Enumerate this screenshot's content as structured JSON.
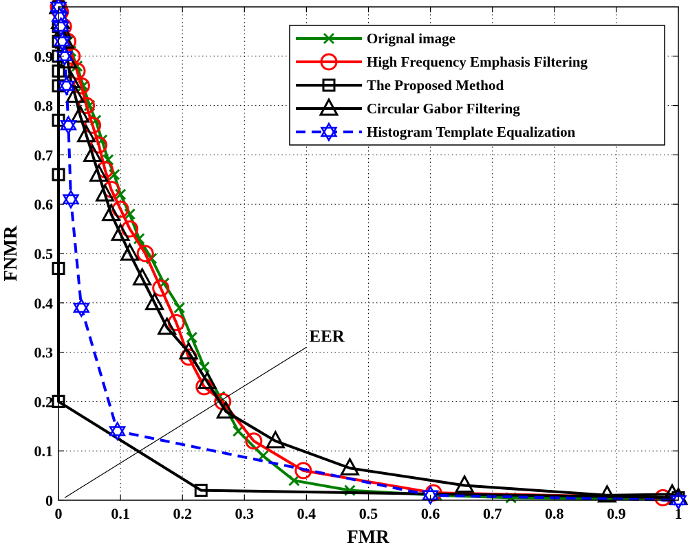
{
  "chart_data": {
    "type": "line",
    "title": "",
    "xlabel": "FMR",
    "ylabel": "FNMR",
    "xlim": [
      0,
      1
    ],
    "ylim": [
      0,
      1
    ],
    "xticks": [
      "0",
      "0.1",
      "0.2",
      "0.3",
      "0.4",
      "0.5",
      "0.6",
      "0.7",
      "0.8",
      "0.9",
      "1"
    ],
    "yticks": [
      "0",
      "0.1",
      "0.2",
      "0.3",
      "0.4",
      "0.5",
      "0.6",
      "0.7",
      "0.8",
      "0.9"
    ],
    "grid": true,
    "legend_position": "top-right",
    "annotation": {
      "text": "EER",
      "from": [
        0.01,
        0.005
      ],
      "to": [
        0.4,
        0.31
      ]
    },
    "series": [
      {
        "name": "Orignal image",
        "color": "#008000",
        "marker": "x",
        "dash": "solid",
        "x": [
          0.0,
          0.002,
          0.005,
          0.01,
          0.015,
          0.02,
          0.03,
          0.04,
          0.05,
          0.06,
          0.07,
          0.08,
          0.09,
          0.1,
          0.115,
          0.13,
          0.15,
          0.17,
          0.195,
          0.215,
          0.235,
          0.26,
          0.29,
          0.33,
          0.38,
          0.47,
          0.61,
          0.73,
          0.99,
          1.0
        ],
        "y": [
          1.0,
          0.99,
          0.97,
          0.95,
          0.93,
          0.91,
          0.88,
          0.84,
          0.8,
          0.77,
          0.73,
          0.69,
          0.66,
          0.62,
          0.58,
          0.53,
          0.49,
          0.44,
          0.39,
          0.33,
          0.27,
          0.21,
          0.14,
          0.09,
          0.04,
          0.02,
          0.01,
          0.005,
          0.002,
          0.0
        ]
      },
      {
        "name": "High Frequency Emphasis Filtering",
        "color": "#ff0000",
        "marker": "o",
        "dash": "solid",
        "x": [
          0.0,
          0.003,
          0.008,
          0.015,
          0.022,
          0.03,
          0.037,
          0.045,
          0.055,
          0.065,
          0.075,
          0.085,
          0.1,
          0.115,
          0.14,
          0.165,
          0.19,
          0.21,
          0.235,
          0.265,
          0.315,
          0.395,
          0.605,
          0.975
        ],
        "y": [
          1.0,
          0.99,
          0.96,
          0.93,
          0.9,
          0.87,
          0.84,
          0.8,
          0.76,
          0.72,
          0.67,
          0.63,
          0.59,
          0.55,
          0.5,
          0.43,
          0.36,
          0.29,
          0.23,
          0.2,
          0.12,
          0.06,
          0.015,
          0.005
        ]
      },
      {
        "name": "The Proposed Method",
        "color": "#000000",
        "marker": "s",
        "dash": "solid",
        "x": [
          0.0,
          0.0,
          0.0,
          0.0,
          0.0,
          0.0,
          0.0,
          0.0,
          0.0,
          0.0,
          0.0,
          0.0,
          0.23,
          1.0
        ],
        "y": [
          1.0,
          0.96,
          0.93,
          0.9,
          0.87,
          0.84,
          0.77,
          0.66,
          0.47,
          0.2,
          0.2,
          0.2,
          0.02,
          0.005
        ]
      },
      {
        "name": "Circular Gabor Filtering",
        "color": "#000000",
        "marker": "^",
        "dash": "solid",
        "x": [
          0.0,
          0.003,
          0.006,
          0.01,
          0.015,
          0.02,
          0.027,
          0.035,
          0.045,
          0.055,
          0.065,
          0.075,
          0.085,
          0.1,
          0.115,
          0.135,
          0.155,
          0.175,
          0.21,
          0.24,
          0.27,
          0.35,
          0.47,
          0.655,
          0.885,
          0.99,
          1.0
        ],
        "y": [
          1.0,
          0.97,
          0.95,
          0.93,
          0.89,
          0.85,
          0.82,
          0.78,
          0.74,
          0.7,
          0.66,
          0.62,
          0.58,
          0.54,
          0.5,
          0.45,
          0.4,
          0.35,
          0.3,
          0.24,
          0.18,
          0.12,
          0.065,
          0.03,
          0.01,
          0.012,
          0.005
        ]
      },
      {
        "name": "Histogram Template Equalization",
        "color": "#0000ff",
        "marker": "hexagram",
        "dash": "dash",
        "x": [
          0.0,
          0.002,
          0.004,
          0.006,
          0.01,
          0.013,
          0.016,
          0.02,
          0.037,
          0.095,
          0.6,
          1.0
        ],
        "y": [
          1.0,
          0.98,
          0.96,
          0.93,
          0.9,
          0.84,
          0.76,
          0.61,
          0.39,
          0.14,
          0.01,
          0.0
        ]
      }
    ]
  }
}
